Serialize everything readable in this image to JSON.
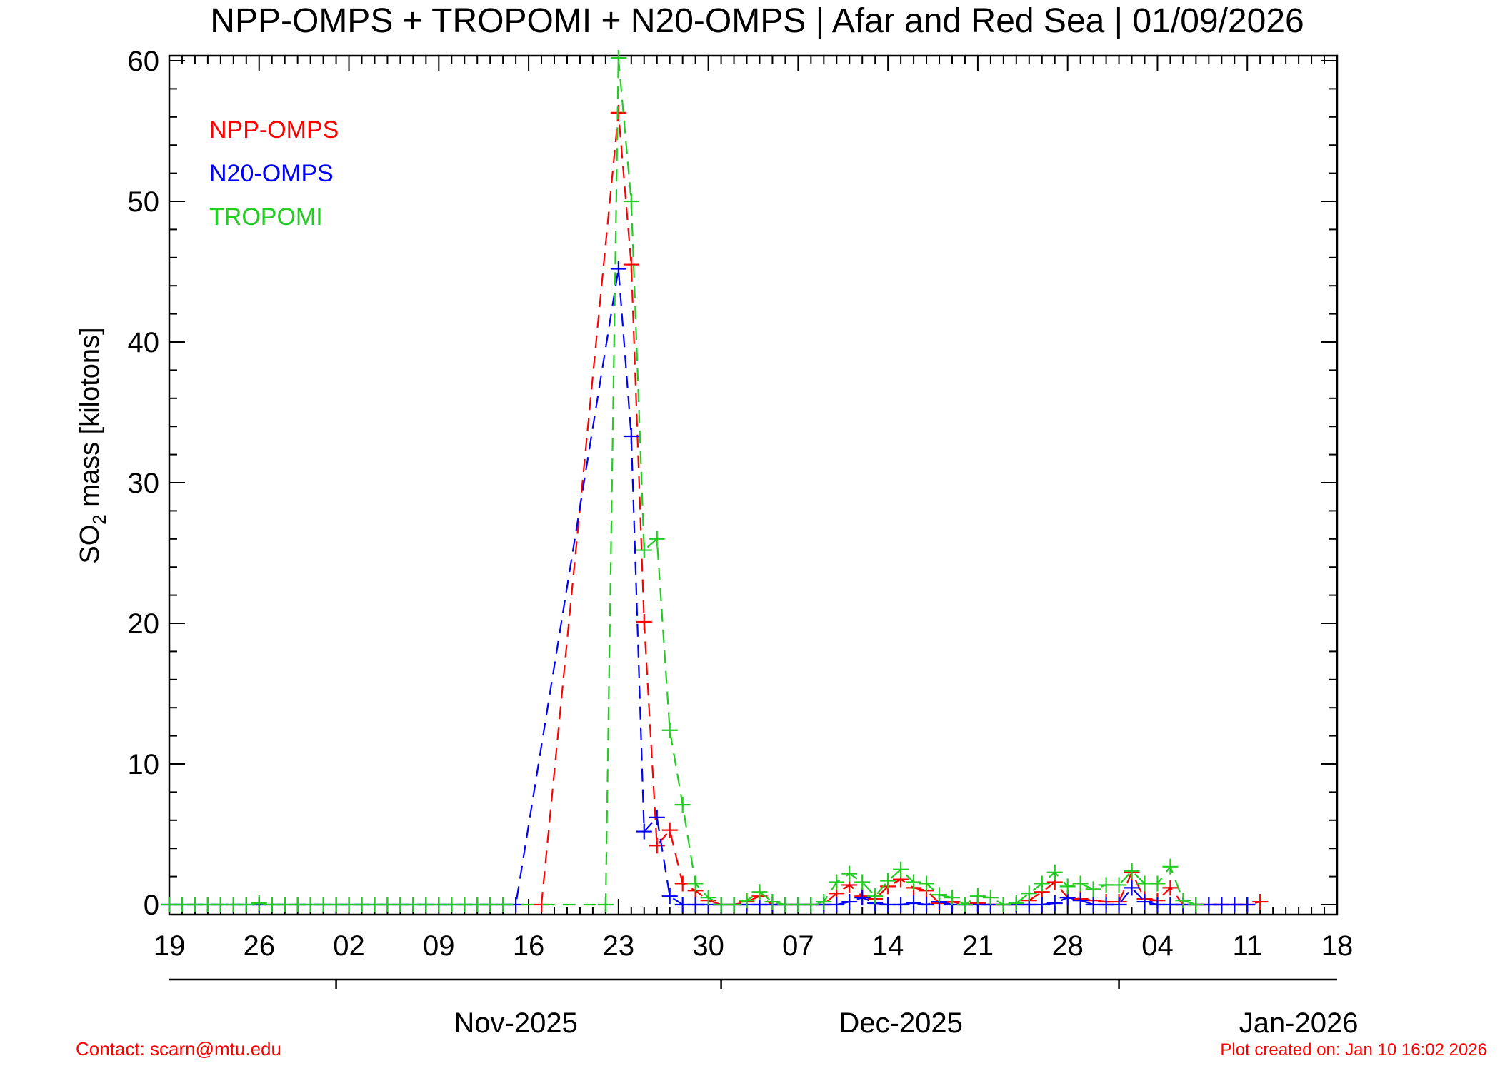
{
  "chart_data": {
    "type": "line",
    "title": "NPP-OMPS + TROPOMI + N20-OMPS | Afar and Red Sea | 01/09/2026",
    "ylabel_main": "SO",
    "ylabel_sub": "2",
    "ylabel_rest": " mass [kilotons]",
    "ylim": [
      0,
      60
    ],
    "yticks": [
      0,
      10,
      20,
      30,
      40,
      50,
      60
    ],
    "x_start": "2025-10-19",
    "x_end": "2026-01-18",
    "xticks": [
      {
        "date": "2025-10-19",
        "label": "19"
      },
      {
        "date": "2025-10-26",
        "label": "26"
      },
      {
        "date": "2025-11-02",
        "label": "02"
      },
      {
        "date": "2025-11-09",
        "label": "09"
      },
      {
        "date": "2025-11-16",
        "label": "16"
      },
      {
        "date": "2025-11-23",
        "label": "23"
      },
      {
        "date": "2025-11-30",
        "label": "30"
      },
      {
        "date": "2025-12-07",
        "label": "07"
      },
      {
        "date": "2025-12-14",
        "label": "14"
      },
      {
        "date": "2025-12-21",
        "label": "21"
      },
      {
        "date": "2025-12-28",
        "label": "28"
      },
      {
        "date": "2026-01-04",
        "label": "04"
      },
      {
        "date": "2026-01-11",
        "label": "11"
      },
      {
        "date": "2026-01-18",
        "label": "18"
      }
    ],
    "month_ticks": [
      "2025-11-01",
      "2025-12-01",
      "2026-01-01"
    ],
    "month_labels": [
      {
        "date": "2025-11-15",
        "label": "Nov-2025"
      },
      {
        "date": "2025-12-15",
        "label": "Dec-2025"
      },
      {
        "date": "2026-01-15",
        "label": "Jan-2026"
      }
    ],
    "legend_position": "top-left",
    "grid": false,
    "series": [
      {
        "name": "NPP-OMPS",
        "color": "#ff0000",
        "points": [
          [
            "2025-11-17",
            0
          ],
          [
            "2025-11-23",
            56.3
          ],
          [
            "2025-11-24",
            45.5
          ],
          [
            "2025-11-25",
            20.1
          ],
          [
            "2025-11-26",
            4.2
          ],
          [
            "2025-11-27",
            5.3
          ],
          [
            "2025-11-28",
            1.5
          ],
          [
            "2025-11-29",
            1.0
          ],
          [
            "2025-11-30",
            0.3
          ],
          [
            "2025-12-01",
            0
          ],
          [
            "2025-12-02",
            0
          ],
          [
            "2025-12-03",
            0.2
          ],
          [
            "2025-12-04",
            0.6
          ],
          [
            "2025-12-05",
            0
          ],
          [
            "2025-12-06",
            0
          ],
          [
            "2025-12-07",
            0
          ],
          [
            "2025-12-08",
            0
          ],
          [
            "2025-12-09",
            0
          ],
          [
            "2025-12-10",
            0.8
          ],
          [
            "2025-12-11",
            1.4
          ],
          [
            "2025-12-12",
            0.6
          ],
          [
            "2025-12-13",
            0.4
          ],
          [
            "2025-12-14",
            1.3
          ],
          [
            "2025-12-15",
            1.8
          ],
          [
            "2025-12-16",
            1.2
          ],
          [
            "2025-12-17",
            1.0
          ],
          [
            "2025-12-18",
            0.1
          ],
          [
            "2025-12-19",
            0.2
          ],
          [
            "2025-12-20",
            0
          ],
          [
            "2025-12-21",
            0.1
          ],
          [
            "2025-12-22",
            0
          ],
          [
            "2025-12-23",
            0
          ],
          [
            "2025-12-24",
            0
          ],
          [
            "2025-12-25",
            0.3
          ],
          [
            "2025-12-26",
            0.9
          ],
          [
            "2025-12-27",
            1.6
          ],
          [
            "2025-12-28",
            0.5
          ],
          [
            "2025-12-29",
            0.4
          ],
          [
            "2025-12-30",
            0.3
          ],
          [
            "2025-12-31",
            0.2
          ],
          [
            "2026-01-01",
            0.2
          ],
          [
            "2026-01-02",
            2.3
          ],
          [
            "2026-01-03",
            0.4
          ],
          [
            "2026-01-04",
            0.3
          ],
          [
            "2026-01-05",
            1.2
          ],
          [
            "2026-01-06",
            0
          ],
          [
            "2026-01-07",
            0
          ],
          [
            "2026-01-08",
            0
          ],
          [
            "2026-01-09",
            0
          ],
          [
            "2026-01-10",
            0
          ],
          [
            "2026-01-11",
            0
          ],
          [
            "2026-01-12",
            0.2
          ]
        ]
      },
      {
        "name": "N20-OMPS",
        "color": "#0000ff",
        "points": [
          [
            "2025-10-19",
            0
          ],
          [
            "2025-10-20",
            0
          ],
          [
            "2025-10-21",
            0
          ],
          [
            "2025-10-22",
            0
          ],
          [
            "2025-10-23",
            0
          ],
          [
            "2025-10-24",
            0
          ],
          [
            "2025-10-25",
            0
          ],
          [
            "2025-10-26",
            0
          ],
          [
            "2025-10-27",
            0
          ],
          [
            "2025-10-28",
            0
          ],
          [
            "2025-10-29",
            0
          ],
          [
            "2025-10-30",
            0
          ],
          [
            "2025-10-31",
            0
          ],
          [
            "2025-11-01",
            0
          ],
          [
            "2025-11-02",
            0
          ],
          [
            "2025-11-03",
            0
          ],
          [
            "2025-11-04",
            0
          ],
          [
            "2025-11-05",
            0
          ],
          [
            "2025-11-06",
            0
          ],
          [
            "2025-11-07",
            0
          ],
          [
            "2025-11-08",
            0
          ],
          [
            "2025-11-09",
            0
          ],
          [
            "2025-11-10",
            0
          ],
          [
            "2025-11-11",
            0
          ],
          [
            "2025-11-12",
            0
          ],
          [
            "2025-11-13",
            0
          ],
          [
            "2025-11-14",
            0
          ],
          [
            "2025-11-15",
            0
          ],
          [
            "2025-11-23",
            45.2
          ],
          [
            "2025-11-24",
            33.3
          ],
          [
            "2025-11-25",
            5.2
          ],
          [
            "2025-11-26",
            6.2
          ],
          [
            "2025-11-27",
            0.6
          ],
          [
            "2025-11-28",
            0
          ],
          [
            "2025-11-29",
            0
          ],
          [
            "2025-11-30",
            0
          ],
          [
            "2025-12-01",
            0
          ],
          [
            "2025-12-02",
            0
          ],
          [
            "2025-12-03",
            0
          ],
          [
            "2025-12-04",
            0
          ],
          [
            "2025-12-05",
            0
          ],
          [
            "2025-12-06",
            0
          ],
          [
            "2025-12-07",
            0
          ],
          [
            "2025-12-08",
            0
          ],
          [
            "2025-12-09",
            0
          ],
          [
            "2025-12-10",
            0
          ],
          [
            "2025-12-11",
            0.2
          ],
          [
            "2025-12-12",
            0.5
          ],
          [
            "2025-12-13",
            0.1
          ],
          [
            "2025-12-14",
            0
          ],
          [
            "2025-12-15",
            0
          ],
          [
            "2025-12-16",
            0.1
          ],
          [
            "2025-12-17",
            0
          ],
          [
            "2025-12-18",
            0.2
          ],
          [
            "2025-12-19",
            0
          ],
          [
            "2025-12-20",
            0
          ],
          [
            "2025-12-21",
            0
          ],
          [
            "2025-12-22",
            0
          ],
          [
            "2025-12-23",
            0
          ],
          [
            "2025-12-24",
            0
          ],
          [
            "2025-12-25",
            0
          ],
          [
            "2025-12-26",
            0
          ],
          [
            "2025-12-27",
            0.1
          ],
          [
            "2025-12-28",
            0.5
          ],
          [
            "2025-12-29",
            0.3
          ],
          [
            "2025-12-30",
            0
          ],
          [
            "2025-12-31",
            0
          ],
          [
            "2026-01-01",
            0
          ],
          [
            "2026-01-02",
            1.2
          ],
          [
            "2026-01-03",
            0.2
          ],
          [
            "2026-01-04",
            0
          ],
          [
            "2026-01-05",
            0
          ],
          [
            "2026-01-06",
            0
          ],
          [
            "2026-01-07",
            0
          ],
          [
            "2026-01-08",
            0
          ],
          [
            "2026-01-09",
            0
          ],
          [
            "2026-01-10",
            0
          ],
          [
            "2026-01-11",
            0
          ]
        ]
      },
      {
        "name": "TROPOMI",
        "color": "#22cc22",
        "points": [
          [
            "2025-10-19",
            0
          ],
          [
            "2025-10-20",
            0
          ],
          [
            "2025-10-21",
            0
          ],
          [
            "2025-10-22",
            0
          ],
          [
            "2025-10-23",
            0
          ],
          [
            "2025-10-24",
            0
          ],
          [
            "2025-10-25",
            0
          ],
          [
            "2025-10-26",
            0.1
          ],
          [
            "2025-10-27",
            0
          ],
          [
            "2025-10-28",
            0
          ],
          [
            "2025-10-29",
            0
          ],
          [
            "2025-10-30",
            0
          ],
          [
            "2025-10-31",
            0
          ],
          [
            "2025-11-01",
            0
          ],
          [
            "2025-11-02",
            0
          ],
          [
            "2025-11-03",
            0
          ],
          [
            "2025-11-04",
            0
          ],
          [
            "2025-11-05",
            0
          ],
          [
            "2025-11-06",
            0
          ],
          [
            "2025-11-07",
            0
          ],
          [
            "2025-11-08",
            0
          ],
          [
            "2025-11-09",
            0
          ],
          [
            "2025-11-10",
            0
          ],
          [
            "2025-11-11",
            0
          ],
          [
            "2025-11-12",
            0
          ],
          [
            "2025-11-13",
            0
          ],
          [
            "2025-11-14",
            0
          ],
          [
            "2025-11-22",
            0
          ],
          [
            "2025-11-23",
            60.2
          ],
          [
            "2025-11-24",
            50.0
          ],
          [
            "2025-11-25",
            25.2
          ],
          [
            "2025-11-26",
            26.0
          ],
          [
            "2025-11-27",
            12.4
          ],
          [
            "2025-11-28",
            7.1
          ],
          [
            "2025-11-29",
            1.5
          ],
          [
            "2025-11-30",
            0.5
          ],
          [
            "2025-12-01",
            0
          ],
          [
            "2025-12-02",
            0
          ],
          [
            "2025-12-03",
            0.3
          ],
          [
            "2025-12-04",
            0.9
          ],
          [
            "2025-12-05",
            0.2
          ],
          [
            "2025-12-06",
            0
          ],
          [
            "2025-12-07",
            0
          ],
          [
            "2025-12-08",
            0
          ],
          [
            "2025-12-09",
            0.2
          ],
          [
            "2025-12-10",
            1.6
          ],
          [
            "2025-12-11",
            2.2
          ],
          [
            "2025-12-12",
            1.6
          ],
          [
            "2025-12-13",
            0.6
          ],
          [
            "2025-12-14",
            1.7
          ],
          [
            "2025-12-15",
            2.5
          ],
          [
            "2025-12-16",
            1.6
          ],
          [
            "2025-12-17",
            1.5
          ],
          [
            "2025-12-18",
            0.7
          ],
          [
            "2025-12-19",
            0.5
          ],
          [
            "2025-12-20",
            0
          ],
          [
            "2025-12-21",
            0.6
          ],
          [
            "2025-12-22",
            0.5
          ],
          [
            "2025-12-23",
            0
          ],
          [
            "2025-12-24",
            0.1
          ],
          [
            "2025-12-25",
            0.8
          ],
          [
            "2025-12-26",
            1.5
          ],
          [
            "2025-12-27",
            2.3
          ],
          [
            "2025-12-28",
            1.3
          ],
          [
            "2025-12-29",
            1.5
          ],
          [
            "2025-12-30",
            1.1
          ],
          [
            "2025-12-31",
            1.4
          ],
          [
            "2026-01-01",
            1.4
          ],
          [
            "2026-01-02",
            2.4
          ],
          [
            "2026-01-03",
            1.5
          ],
          [
            "2026-01-04",
            1.5
          ],
          [
            "2026-01-05",
            2.7
          ],
          [
            "2026-01-06",
            0.3
          ],
          [
            "2026-01-07",
            0
          ]
        ]
      }
    ]
  },
  "footer": {
    "contact": "Contact: scarn@mtu.edu",
    "created": "Plot created on: Jan 10 16:02 2026"
  }
}
